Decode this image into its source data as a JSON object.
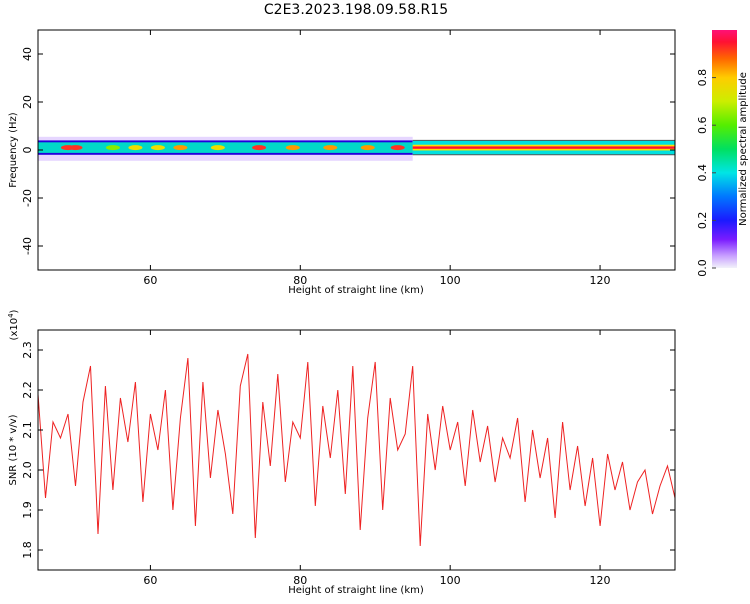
{
  "title": "C2E3.2023.198.09.58.R15",
  "chart_data": [
    {
      "type": "heatmap",
      "xlabel": "Height of straight line (km)",
      "ylabel": "Frequency (Hz)",
      "xlim": [
        45,
        130
      ],
      "ylim": [
        -50,
        50
      ],
      "xticks": [
        60,
        80,
        100,
        120
      ],
      "yticks": [
        40,
        20,
        0,
        -20,
        -40
      ],
      "ytick_labels": [
        "40",
        "20",
        "0",
        "-20",
        "-40"
      ],
      "band_center_hz": 1,
      "band_halfwidth_hz": 3,
      "transition_km": 95,
      "hot_spots": [
        {
          "x": 49,
          "v": 0.85
        },
        {
          "x": 50,
          "v": 0.85
        },
        {
          "x": 55,
          "v": 0.55
        },
        {
          "x": 58,
          "v": 0.6
        },
        {
          "x": 61,
          "v": 0.6
        },
        {
          "x": 64,
          "v": 0.7
        },
        {
          "x": 69,
          "v": 0.65
        },
        {
          "x": 74.5,
          "v": 0.8
        },
        {
          "x": 79,
          "v": 0.75
        },
        {
          "x": 84,
          "v": 0.7
        },
        {
          "x": 89,
          "v": 0.7
        },
        {
          "x": 93,
          "v": 0.85
        }
      ],
      "colorbar": {
        "label": "Normalized spectral amplitude",
        "ticks": [
          0.0,
          0.2,
          0.4,
          0.6,
          0.8
        ],
        "tick_labels": [
          "0.0",
          "0.2",
          "0.4",
          "0.6",
          "0.8"
        ],
        "range": [
          0,
          1
        ]
      }
    },
    {
      "type": "line",
      "xlabel": "Height of straight line (km)",
      "ylabel": "SNR (10 * v/v)",
      "scale_label": "(x10",
      "scale_exp": "4",
      "scale_close": ")",
      "xlim": [
        45,
        130
      ],
      "ylim": [
        1.75,
        2.35
      ],
      "xticks": [
        60,
        80,
        100,
        120
      ],
      "yticks": [
        1.8,
        1.9,
        2.0,
        2.1,
        2.2,
        2.3
      ],
      "ytick_labels": [
        "1.8",
        "1.9",
        "2.0",
        "2.1",
        "2.2",
        "2.3"
      ],
      "color": "#ee2222",
      "x": [
        45,
        46,
        47,
        48,
        49,
        50,
        51,
        52,
        53,
        54,
        55,
        56,
        57,
        58,
        59,
        60,
        61,
        62,
        63,
        64,
        65,
        66,
        67,
        68,
        69,
        70,
        71,
        72,
        73,
        74,
        75,
        76,
        77,
        78,
        79,
        80,
        81,
        82,
        83,
        84,
        85,
        86,
        87,
        88,
        89,
        90,
        91,
        92,
        93,
        94,
        95,
        96,
        97,
        98,
        99,
        100,
        101,
        102,
        103,
        104,
        105,
        106,
        107,
        108,
        109,
        110,
        111,
        112,
        113,
        114,
        115,
        116,
        117,
        118,
        119,
        120,
        121,
        122,
        123,
        124,
        125,
        126,
        127,
        128,
        129,
        130
      ],
      "values": [
        2.19,
        1.93,
        2.12,
        2.08,
        2.14,
        1.96,
        2.17,
        2.26,
        1.84,
        2.21,
        1.95,
        2.18,
        2.07,
        2.22,
        1.92,
        2.14,
        2.05,
        2.2,
        1.9,
        2.13,
        2.28,
        1.86,
        2.22,
        1.98,
        2.15,
        2.04,
        1.89,
        2.21,
        2.29,
        1.83,
        2.17,
        2.01,
        2.24,
        1.97,
        2.12,
        2.08,
        2.27,
        1.91,
        2.16,
        2.03,
        2.2,
        1.94,
        2.26,
        1.85,
        2.13,
        2.27,
        1.9,
        2.18,
        2.05,
        2.09,
        2.26,
        1.81,
        2.14,
        2.0,
        2.16,
        2.05,
        2.12,
        1.96,
        2.15,
        2.02,
        2.11,
        1.97,
        2.08,
        2.03,
        2.13,
        1.92,
        2.1,
        1.98,
        2.08,
        1.88,
        2.12,
        1.95,
        2.06,
        1.91,
        2.03,
        1.86,
        2.04,
        1.95,
        2.02,
        1.9,
        1.97,
        2.0,
        1.89,
        1.96,
        2.01,
        1.93
      ]
    }
  ]
}
